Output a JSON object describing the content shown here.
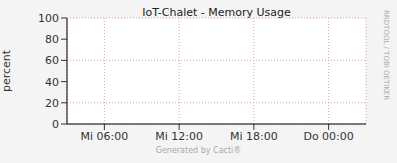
{
  "chart_data": {
    "type": "line",
    "title": "IoT-Chalet - Memory Usage",
    "y_label": "percent",
    "categories": [
      null,
      null,
      null,
      "Mi 06:00",
      null,
      null,
      null,
      null,
      null,
      "Mi 12:00",
      null,
      null,
      null,
      null,
      null,
      "Mi 18:00",
      null,
      null,
      null,
      null,
      null,
      "Do 00:00",
      null,
      null,
      null
    ],
    "values": [
      null,
      null,
      null,
      null,
      null,
      null,
      null,
      null,
      null,
      null,
      null,
      null,
      null,
      null,
      null,
      null,
      null,
      null,
      null,
      null,
      null,
      null,
      null,
      null,
      null
    ],
    "ylim": [
      0,
      100
    ],
    "yticks": [
      0,
      20,
      40,
      60,
      80,
      100
    ],
    "grid": true,
    "annotations": [
      "RRDTOOL / TOBI OETIKER",
      "Generated by Cacti®"
    ]
  }
}
